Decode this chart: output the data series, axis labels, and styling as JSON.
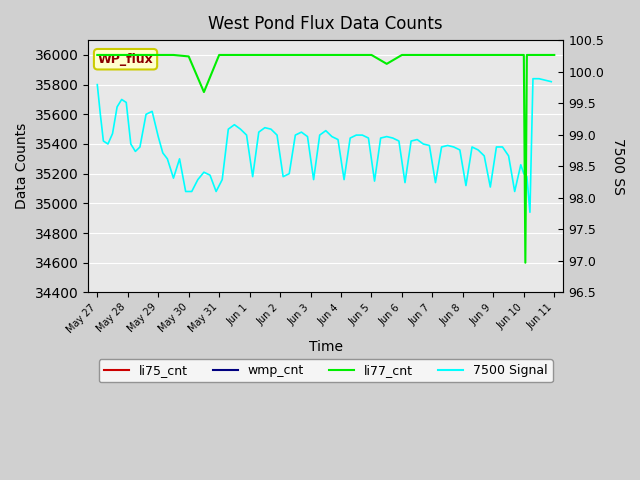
{
  "title": "West Pond Flux Data Counts",
  "xlabel": "Time",
  "ylabel_left": "Data Counts",
  "ylabel_right": "7500 SS",
  "ylim_left": [
    34400,
    36000
  ],
  "ylim_right": [
    96.5,
    100.5
  ],
  "bg_color": "#e8e8e8",
  "wp_flux_label": "WP_flux",
  "x_tick_labels": [
    "May 27",
    "May 28",
    "May 29",
    "May 30",
    "May 31",
    "Jun 1",
    "Jun 2",
    "Jun 3",
    "Jun 4",
    "Jun 5",
    "Jun 6",
    "Jun 7",
    "Jun 8",
    "Jun 9",
    "Jun 10",
    "Jun 11"
  ],
  "x_values_days": [
    0,
    1,
    2,
    3,
    4,
    5,
    6,
    7,
    8,
    9,
    10,
    11,
    12,
    13,
    14,
    15
  ],
  "cyan_x": [
    0,
    0.1,
    0.2,
    0.35,
    0.5,
    0.65,
    0.8,
    0.95,
    1.1,
    1.25,
    1.4,
    1.6,
    1.8,
    2.0,
    2.15,
    2.3,
    2.5,
    2.7,
    2.9,
    3.1,
    3.3,
    3.5,
    3.7,
    3.9,
    4.1,
    4.3,
    4.5,
    4.7,
    4.9,
    5.1,
    5.3,
    5.5,
    5.7,
    5.9,
    6.1,
    6.3,
    6.5,
    6.7,
    6.9,
    7.1,
    7.3,
    7.5,
    7.7,
    7.9,
    8.1,
    8.3,
    8.5,
    8.7,
    8.9,
    9.1,
    9.3,
    9.5,
    9.7,
    9.9,
    10.1,
    10.3,
    10.5,
    10.7,
    10.9,
    11.1,
    11.3,
    11.5,
    11.7,
    11.9,
    12.1,
    12.3,
    12.5,
    12.7,
    12.9,
    13.1,
    13.3,
    13.5,
    13.7,
    13.9,
    14.0,
    14.1,
    14.2,
    14.3,
    14.5,
    14.7,
    14.9
  ],
  "cyan_y": [
    35800,
    35600,
    35420,
    35400,
    35470,
    35650,
    35700,
    35680,
    35400,
    35350,
    35380,
    35600,
    35620,
    35450,
    35340,
    35300,
    35170,
    35300,
    35080,
    35080,
    35160,
    35210,
    35190,
    35080,
    35160,
    35500,
    35530,
    35500,
    35460,
    35180,
    35480,
    35510,
    35500,
    35460,
    35180,
    35200,
    35460,
    35480,
    35450,
    35160,
    35460,
    35490,
    35450,
    35430,
    35160,
    35440,
    35460,
    35460,
    35440,
    35150,
    35440,
    35450,
    35440,
    35420,
    35140,
    35420,
    35430,
    35400,
    35390,
    35140,
    35380,
    35390,
    35380,
    35360,
    35120,
    35380,
    35360,
    35320,
    35110,
    35380,
    35380,
    35320,
    35080,
    35260,
    35200,
    35180,
    34940,
    35840,
    35840,
    35830,
    35820
  ],
  "green_x": [
    0,
    0.5,
    1.0,
    1.5,
    2.0,
    2.5,
    3.0,
    3.5,
    4.0,
    4.5,
    5.0,
    5.5,
    6.0,
    6.5,
    7.0,
    7.5,
    8.0,
    8.5,
    9.0,
    9.5,
    10.0,
    10.5,
    11.0,
    11.5,
    12.0,
    12.5,
    13.0,
    13.5,
    13.9,
    14.0,
    14.05,
    14.1,
    14.15,
    14.2,
    14.5,
    14.8,
    15.0
  ],
  "green_y": [
    36000,
    36000,
    36000,
    36000,
    36000,
    36000,
    35990,
    35750,
    36000,
    36000,
    36000,
    36000,
    36000,
    36000,
    36000,
    36000,
    36000,
    36000,
    36000,
    35940,
    36000,
    36000,
    36000,
    36000,
    36000,
    36000,
    36000,
    36000,
    36000,
    36000,
    34600,
    36000,
    36000,
    36000,
    36000,
    36000,
    36000
  ],
  "legend_items": [
    {
      "label": "li75_cnt",
      "color": "#cc0000",
      "lw": 1.5
    },
    {
      "label": "wmp_cnt",
      "color": "#000080",
      "lw": 1.5
    },
    {
      "label": "li77_cnt",
      "color": "#00cc00",
      "lw": 1.5
    },
    {
      "label": "7500 Signal",
      "color": "cyan",
      "lw": 1.5
    }
  ]
}
